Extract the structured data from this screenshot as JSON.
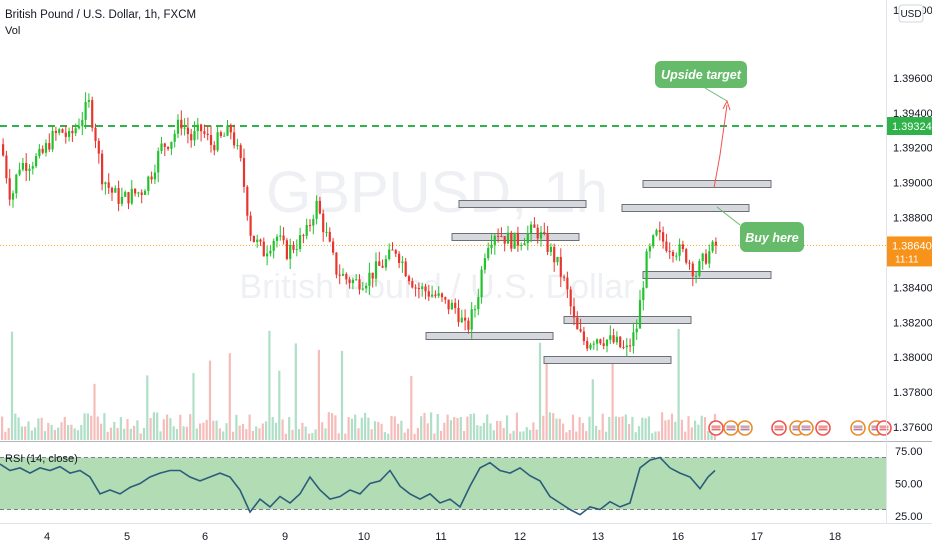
{
  "header": {
    "symbol_line": "British Pound / U.S. Dollar, 1h, FXCM",
    "volume_label": "Vol",
    "currency": "USD"
  },
  "watermark": {
    "symbol": "GBPUSD, 1h",
    "name": "British Pound / U.S. Dollar"
  },
  "rsi": {
    "label": "RSI (14, close)",
    "band_upper": 70,
    "band_lower": 30,
    "ticks": [
      "75.00",
      "50.00",
      "25.00"
    ]
  },
  "annotations": {
    "upside_target": "Upside target",
    "buy_here": "Buy here"
  },
  "price_badges": {
    "target": "1.39324",
    "current": "1.38640",
    "countdown": "11:11"
  },
  "colors": {
    "up": "#26a69a",
    "down": "#ef5350",
    "up_candle": "#22c22e",
    "down_candle": "#e8362f",
    "target_line": "#2fb24a",
    "label_green": "#66bb6a",
    "current_line": "#f5a623",
    "rsi_line": "#2b5d7a",
    "rsi_band": "#a5d6a7"
  },
  "chart_data": {
    "type": "candlestick",
    "title": "British Pound / U.S. Dollar, 1h, FXCM",
    "price_axis": {
      "ticks": [
        "1.40000",
        "1.39600",
        "1.39400",
        "1.39200",
        "1.39000",
        "1.38800",
        "1.38640",
        "1.38400",
        "1.38200",
        "1.38000",
        "1.37800",
        "1.37600"
      ],
      "range": [
        1.375,
        1.4
      ]
    },
    "time_axis": {
      "ticks": [
        "4",
        "5",
        "6",
        "9",
        "10",
        "11",
        "12",
        "13",
        "16",
        "17",
        "18"
      ]
    },
    "target_level": 1.39324,
    "current_price": 1.3864,
    "support_resistance_zones": [
      {
        "price": 1.3878,
        "from": "11",
        "to": "12"
      },
      {
        "price": 1.386,
        "from": "11",
        "to": "12"
      },
      {
        "price": 1.3808,
        "from": "10",
        "to": "11"
      },
      {
        "price": 1.3818,
        "from": "12",
        "to": "13"
      },
      {
        "price": 1.3797,
        "from": "12",
        "to": "13"
      },
      {
        "price": 1.3889,
        "from": "16",
        "to": "17"
      },
      {
        "price": 1.3876,
        "from": "13",
        "to": "16"
      },
      {
        "price": 1.384,
        "from": "16",
        "to": "17"
      }
    ],
    "close_path": [
      [
        0,
        1.3922
      ],
      [
        10,
        1.389
      ],
      [
        18,
        1.391
      ],
      [
        30,
        1.3912
      ],
      [
        40,
        1.3915
      ],
      [
        50,
        1.3925
      ],
      [
        60,
        1.393
      ],
      [
        68,
        1.3925
      ],
      [
        78,
        1.3935
      ],
      [
        88,
        1.3945
      ],
      [
        95,
        1.3925
      ],
      [
        100,
        1.3905
      ],
      [
        110,
        1.3895
      ],
      [
        120,
        1.389
      ],
      [
        130,
        1.3893
      ],
      [
        140,
        1.3895
      ],
      [
        150,
        1.3905
      ],
      [
        160,
        1.392
      ],
      [
        170,
        1.3925
      ],
      [
        180,
        1.3935
      ],
      [
        190,
        1.3925
      ],
      [
        200,
        1.393
      ],
      [
        210,
        1.3922
      ],
      [
        220,
        1.3925
      ],
      [
        230,
        1.393
      ],
      [
        240,
        1.391
      ],
      [
        250,
        1.387
      ],
      [
        262,
        1.386
      ],
      [
        275,
        1.387
      ],
      [
        285,
        1.386
      ],
      [
        295,
        1.3865
      ],
      [
        305,
        1.387
      ],
      [
        315,
        1.3888
      ],
      [
        325,
        1.387
      ],
      [
        335,
        1.385
      ],
      [
        345,
        1.3845
      ],
      [
        355,
        1.3843
      ],
      [
        365,
        1.3845
      ],
      [
        375,
        1.385
      ],
      [
        385,
        1.3855
      ],
      [
        395,
        1.3862
      ],
      [
        405,
        1.385
      ],
      [
        415,
        1.384
      ],
      [
        425,
        1.3838
      ],
      [
        435,
        1.3835
      ],
      [
        445,
        1.383
      ],
      [
        455,
        1.3828
      ],
      [
        465,
        1.3815
      ],
      [
        475,
        1.383
      ],
      [
        485,
        1.3865
      ],
      [
        495,
        1.3873
      ],
      [
        505,
        1.3868
      ],
      [
        515,
        1.3866
      ],
      [
        525,
        1.387
      ],
      [
        535,
        1.3873
      ],
      [
        545,
        1.3865
      ],
      [
        555,
        1.3855
      ],
      [
        565,
        1.384
      ],
      [
        575,
        1.3815
      ],
      [
        585,
        1.3808
      ],
      [
        595,
        1.3812
      ],
      [
        605,
        1.381
      ],
      [
        615,
        1.3808
      ],
      [
        625,
        1.3803
      ],
      [
        635,
        1.3815
      ],
      [
        645,
        1.3855
      ],
      [
        655,
        1.387
      ],
      [
        665,
        1.3865
      ],
      [
        675,
        1.3862
      ],
      [
        685,
        1.3858
      ],
      [
        695,
        1.3848
      ],
      [
        705,
        1.3858
      ],
      [
        715,
        1.3864
      ]
    ],
    "rsi_path": [
      [
        0,
        65
      ],
      [
        10,
        60
      ],
      [
        20,
        62
      ],
      [
        30,
        58
      ],
      [
        40,
        62
      ],
      [
        50,
        60
      ],
      [
        60,
        63
      ],
      [
        70,
        58
      ],
      [
        80,
        60
      ],
      [
        90,
        55
      ],
      [
        100,
        42
      ],
      [
        110,
        45
      ],
      [
        120,
        42
      ],
      [
        130,
        47
      ],
      [
        140,
        50
      ],
      [
        150,
        55
      ],
      [
        160,
        58
      ],
      [
        170,
        60
      ],
      [
        180,
        60
      ],
      [
        190,
        55
      ],
      [
        200,
        52
      ],
      [
        210,
        55
      ],
      [
        220,
        58
      ],
      [
        230,
        55
      ],
      [
        240,
        45
      ],
      [
        250,
        28
      ],
      [
        260,
        38
      ],
      [
        270,
        32
      ],
      [
        280,
        40
      ],
      [
        290,
        35
      ],
      [
        300,
        42
      ],
      [
        310,
        55
      ],
      [
        320,
        45
      ],
      [
        330,
        38
      ],
      [
        340,
        40
      ],
      [
        350,
        45
      ],
      [
        360,
        42
      ],
      [
        370,
        50
      ],
      [
        380,
        52
      ],
      [
        390,
        60
      ],
      [
        400,
        48
      ],
      [
        410,
        42
      ],
      [
        420,
        38
      ],
      [
        430,
        42
      ],
      [
        440,
        35
      ],
      [
        450,
        38
      ],
      [
        460,
        32
      ],
      [
        470,
        48
      ],
      [
        480,
        62
      ],
      [
        490,
        66
      ],
      [
        500,
        60
      ],
      [
        510,
        58
      ],
      [
        520,
        62
      ],
      [
        530,
        56
      ],
      [
        540,
        52
      ],
      [
        550,
        40
      ],
      [
        560,
        35
      ],
      [
        570,
        30
      ],
      [
        580,
        26
      ],
      [
        590,
        32
      ],
      [
        600,
        30
      ],
      [
        610,
        36
      ],
      [
        620,
        32
      ],
      [
        630,
        35
      ],
      [
        640,
        62
      ],
      [
        650,
        68
      ],
      [
        660,
        70
      ],
      [
        670,
        62
      ],
      [
        680,
        58
      ],
      [
        690,
        55
      ],
      [
        700,
        46
      ],
      [
        708,
        55
      ],
      [
        715,
        60
      ]
    ],
    "volume_ticks_relative": true
  }
}
